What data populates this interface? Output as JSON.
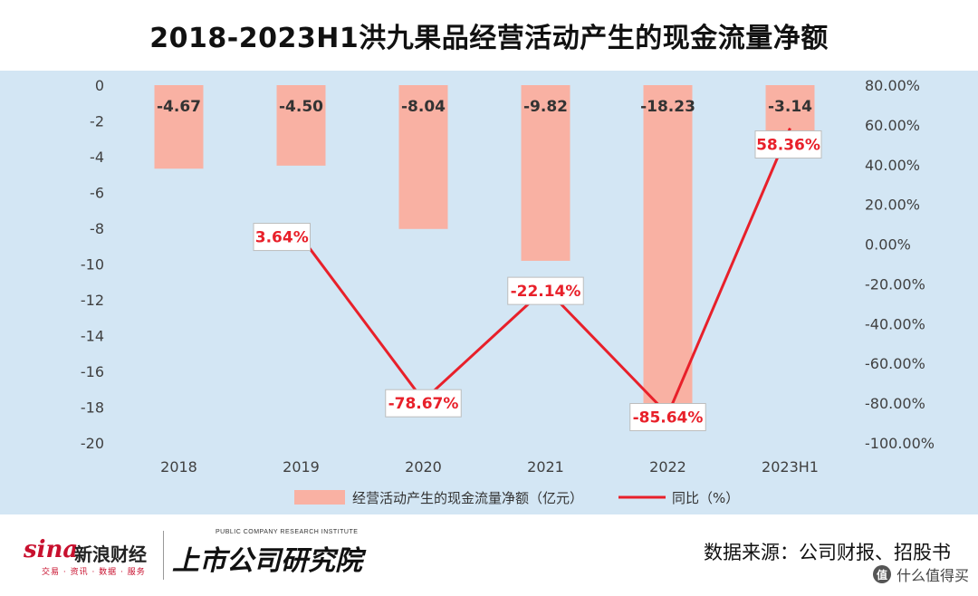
{
  "title": "2018-2023H1洪九果品经营活动产生的现金流量净额",
  "chart_data": {
    "type": "bar",
    "categories": [
      "2018",
      "2019",
      "2020",
      "2021",
      "2022",
      "2023H1"
    ],
    "series": [
      {
        "name": "经营活动产生的现金流量净额（亿元）",
        "type": "bar",
        "axis": "left",
        "color": "#f9b1a3",
        "values": [
          -4.67,
          -4.5,
          -8.04,
          -9.82,
          -18.23,
          -3.14
        ],
        "labels": [
          "-4.67",
          "-4.50",
          "-8.04",
          "-9.82",
          "-18.23",
          "-3.14"
        ]
      },
      {
        "name": "同比（%）",
        "type": "line",
        "axis": "right",
        "color": "#e8202a",
        "values": [
          null,
          3.64,
          -78.67,
          -22.14,
          -85.64,
          58.36
        ],
        "labels": [
          "",
          "3.64%",
          "-78.67%",
          "-22.14%",
          "-85.64%",
          "58.36%"
        ]
      }
    ],
    "y_left": {
      "ylim": [
        -20,
        0
      ],
      "ticks": [
        0,
        -2,
        -4,
        -6,
        -8,
        -10,
        -12,
        -14,
        -16,
        -18,
        -20
      ],
      "tick_labels": [
        "0",
        "-2",
        "-4",
        "-6",
        "-8",
        "-10",
        "-12",
        "-14",
        "-16",
        "-18",
        "-20"
      ]
    },
    "y_right": {
      "ylim": [
        -100,
        80
      ],
      "ticks": [
        80,
        60,
        40,
        20,
        0,
        -20,
        -40,
        -60,
        -80,
        -100
      ],
      "tick_labels": [
        "80.00%",
        "60.00%",
        "40.00%",
        "20.00%",
        "0.00%",
        "-20.00%",
        "-40.00%",
        "-60.00%",
        "-80.00%",
        "-100.00%"
      ]
    },
    "grid": false,
    "legend_position": "bottom"
  },
  "footer": {
    "sina_logo": "sina",
    "sina_name": "新浪财经",
    "sina_sub": "交易 · 资讯 · 数据 · 服务",
    "institute_small": "PUBLIC COMPANY RESEARCH INSTITUTE",
    "institute_name": "上市公司研究院",
    "source": "数据来源：公司财报、招股书",
    "watermark_icon": "值",
    "watermark_text": "什么值得买"
  }
}
